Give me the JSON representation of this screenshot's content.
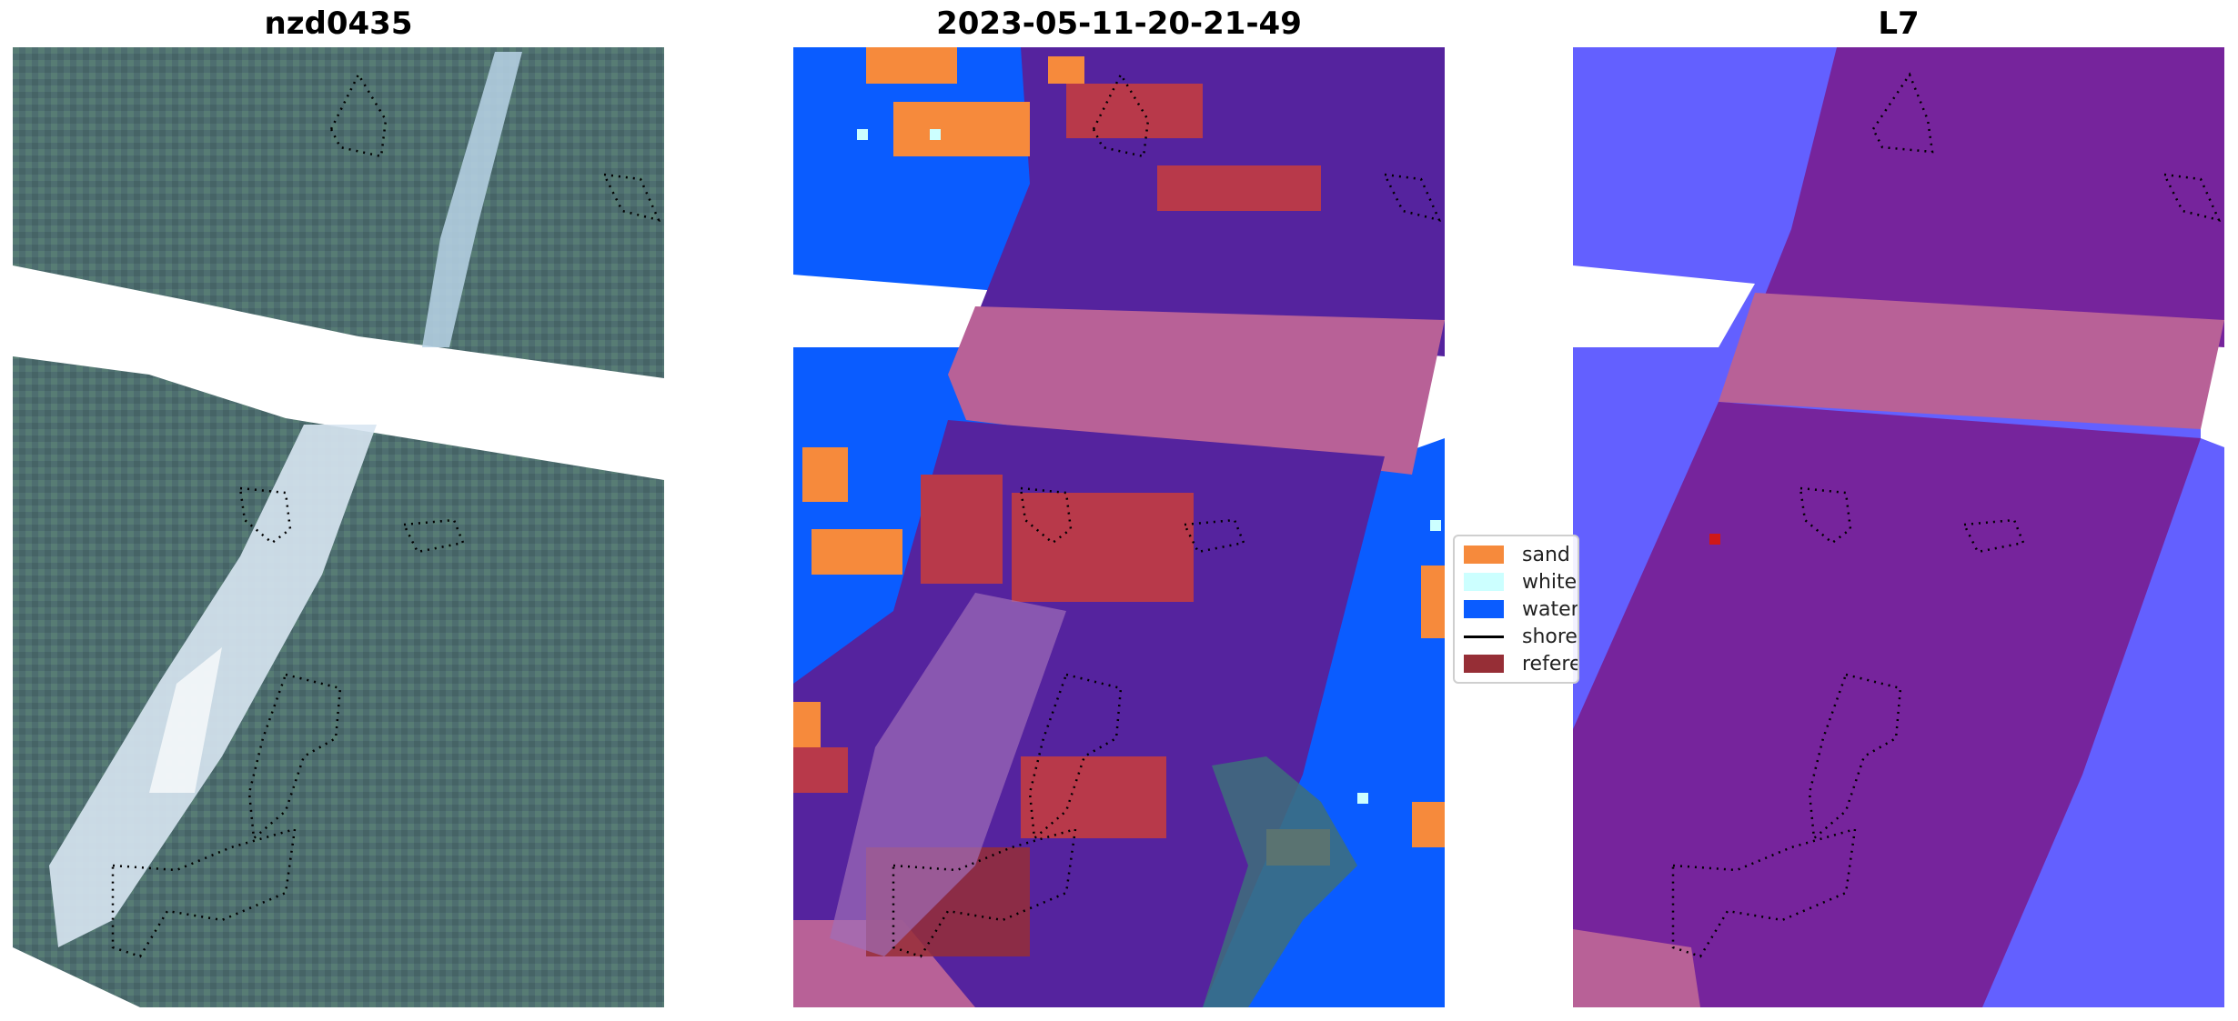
{
  "panels": [
    {
      "title": "nzd0435",
      "kind": "rgb-satellite-image"
    },
    {
      "title": "2023-05-11-20-21-49",
      "kind": "classification-map"
    },
    {
      "title": "L7",
      "kind": "probability-map"
    }
  ],
  "legend": {
    "entries": [
      {
        "label": "sand",
        "color": "#f68a3c",
        "type": "patch"
      },
      {
        "label": "whitew",
        "color": "#ccffff",
        "type": "patch"
      },
      {
        "label": "water",
        "color": "#0a5cff",
        "type": "patch"
      },
      {
        "label": "shorel",
        "color": "#000000",
        "type": "line"
      },
      {
        "label": "referen",
        "color": "#962e36",
        "type": "patch"
      }
    ]
  },
  "colors": {
    "land_purple": "#55239e",
    "pink_band": "#b86197",
    "red_patch": "#b8394a",
    "sand": "#f68a3c",
    "water": "#0a5cff",
    "l7_blue": "#6360ff",
    "l7_purple": "#76249c",
    "satellite_base": "#4e6e70"
  }
}
